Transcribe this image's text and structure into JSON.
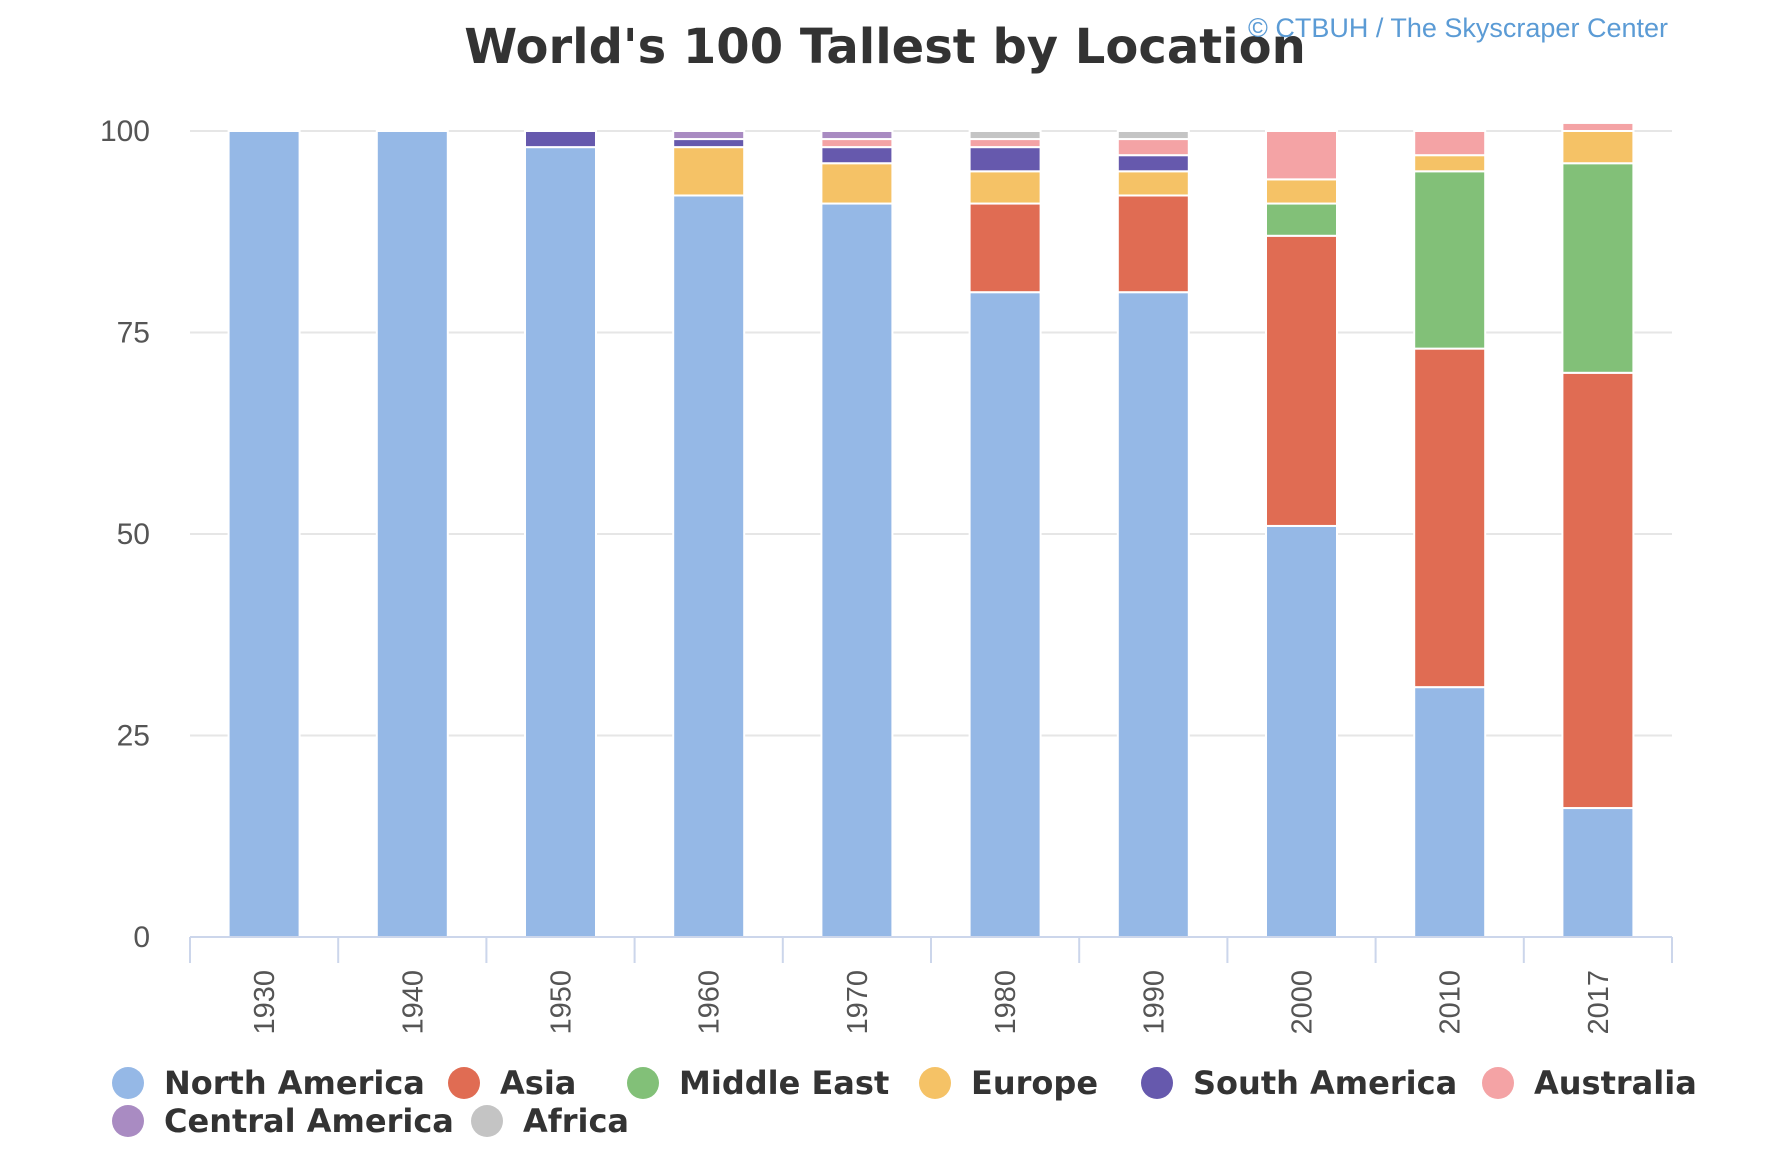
{
  "chart_data": {
    "type": "bar",
    "stacked": true,
    "title": "World's 100 Tallest by Location",
    "credit": "© CTBUH / The Skyscraper Center",
    "xlabel": "",
    "ylabel": "",
    "ylim": [
      0,
      100
    ],
    "yticks": [
      "0",
      "25",
      "50",
      "75",
      "100"
    ],
    "grid": true,
    "legend_position": "bottom",
    "categories": [
      "1930",
      "1940",
      "1950",
      "1960",
      "1970",
      "1980",
      "1990",
      "2000",
      "2010",
      "2017"
    ],
    "series": [
      {
        "name": "North America",
        "color": "#95b8e6",
        "values": [
          100,
          100,
          98,
          92,
          91,
          80,
          80,
          51,
          31,
          16
        ]
      },
      {
        "name": "Asia",
        "color": "#e06c53",
        "values": [
          0,
          0,
          0,
          0,
          0,
          11,
          12,
          36,
          42,
          54
        ]
      },
      {
        "name": "Middle East",
        "color": "#82c078",
        "values": [
          0,
          0,
          0,
          0,
          0,
          0,
          0,
          4,
          22,
          26
        ]
      },
      {
        "name": "Europe",
        "color": "#f5c266",
        "values": [
          0,
          0,
          0,
          6,
          5,
          4,
          3,
          3,
          2,
          4
        ]
      },
      {
        "name": "South America",
        "color": "#6659ad",
        "values": [
          0,
          0,
          2,
          1,
          2,
          3,
          2,
          0,
          0,
          0
        ]
      },
      {
        "name": "Australia",
        "color": "#f4a3a5",
        "values": [
          0,
          0,
          0,
          0,
          1,
          1,
          2,
          6,
          3,
          1
        ]
      },
      {
        "name": "Central America",
        "color": "#a98bc2",
        "values": [
          0,
          0,
          0,
          1,
          1,
          0,
          0,
          0,
          0,
          0
        ]
      },
      {
        "name": "Africa",
        "color": "#c4c4c4",
        "values": [
          0,
          0,
          0,
          0,
          0,
          1,
          1,
          0,
          0,
          0
        ]
      }
    ]
  }
}
